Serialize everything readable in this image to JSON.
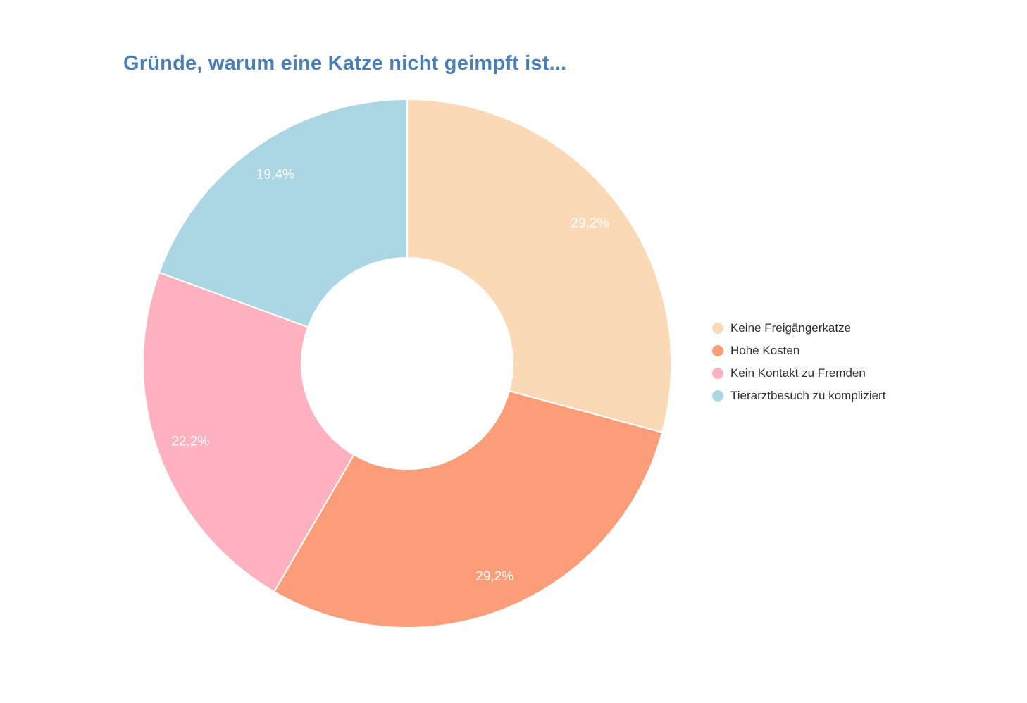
{
  "title": "Gründe, warum eine Katze nicht geimpft ist...",
  "title_color": "#4A7FB5",
  "chart_data": {
    "type": "pie",
    "subtype": "donut",
    "hole_ratio": 0.4,
    "rotation_deg": 0,
    "direction": "clockwise",
    "title": "Gründe, warum eine Katze nicht geimpft ist...",
    "categories": [
      "Keine Freigängerkatze",
      "Hohe Kosten",
      "Kein Kontakt zu Fremden",
      "Tierarztbesuch zu kompliziert"
    ],
    "values_percent": [
      29.2,
      29.2,
      22.2,
      19.4
    ],
    "value_labels": [
      "29,2%",
      "29,2%",
      "22,2%",
      "19,4%"
    ],
    "colors": [
      "#FBD8B6",
      "#FB9D78",
      "#FFB1C0",
      "#ABD6E3"
    ],
    "slice_label_color": "#FFFFFF",
    "legend_position": "right",
    "legend_text_color": "#2F2F2F",
    "background": "#FFFFFF"
  }
}
